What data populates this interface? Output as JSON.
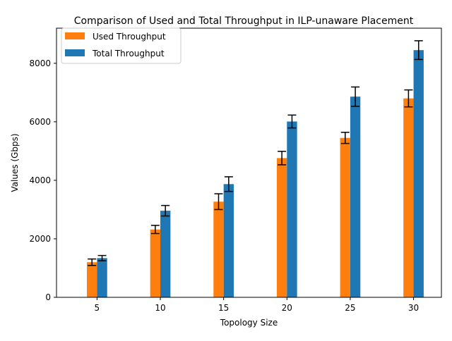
{
  "chart_data": {
    "type": "bar",
    "title": "Comparison of Used and Total Throughput in ILP-unaware Placement",
    "xlabel": "Topology Size",
    "ylabel": "Values (Gbps)",
    "categories": [
      "5",
      "10",
      "15",
      "20",
      "25",
      "30"
    ],
    "ylim": [
      0,
      9200
    ],
    "yticks": [
      0,
      2000,
      4000,
      6000,
      8000
    ],
    "grid": false,
    "legend_position": "top-left",
    "series": [
      {
        "name": "Used Throughput",
        "color": "#ff7f0e",
        "values": [
          1200,
          2320,
          3270,
          4760,
          5450,
          6800
        ],
        "errors": [
          110,
          140,
          270,
          230,
          190,
          290
        ]
      },
      {
        "name": "Total Throughput",
        "color": "#1f77b4",
        "values": [
          1340,
          2960,
          3870,
          6010,
          6860,
          8450
        ],
        "errors": [
          90,
          180,
          250,
          220,
          330,
          320
        ]
      }
    ]
  }
}
